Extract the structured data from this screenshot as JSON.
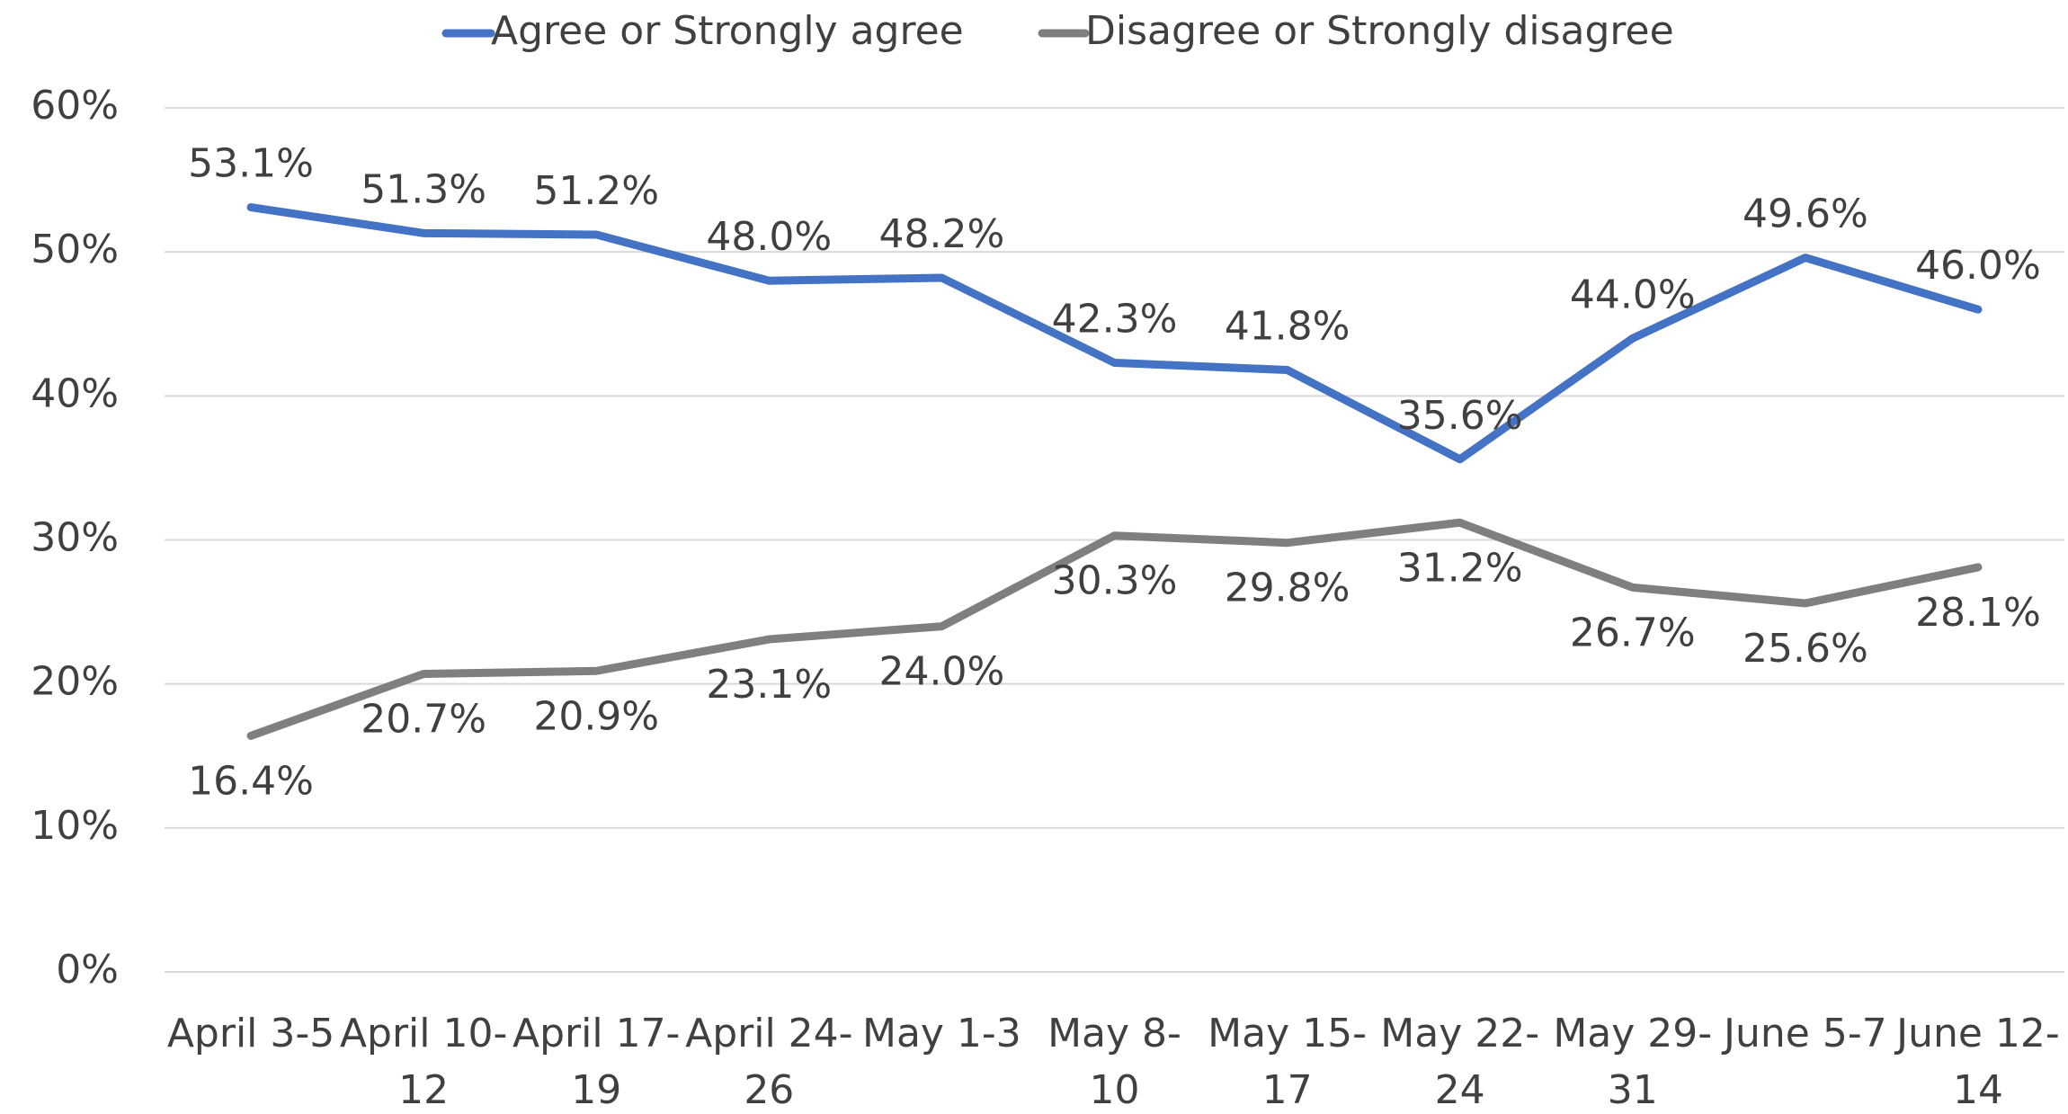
{
  "chart_data": {
    "type": "line",
    "categories": [
      [
        "April 3-5"
      ],
      [
        "April 10-",
        "12"
      ],
      [
        "April 17-",
        "19"
      ],
      [
        "April 24-",
        "26"
      ],
      [
        "May 1-3"
      ],
      [
        "May 8-",
        "10"
      ],
      [
        "May 15-",
        "17"
      ],
      [
        "May 22-",
        "24"
      ],
      [
        "May 29-",
        "31"
      ],
      [
        "June 5-7"
      ],
      [
        "June 12-",
        "14"
      ]
    ],
    "series": [
      {
        "name": "Agree or Strongly agree",
        "color": "#4472c4",
        "values": [
          53.1,
          51.3,
          51.2,
          48.0,
          48.2,
          42.3,
          41.8,
          35.6,
          44.0,
          49.6,
          46.0
        ],
        "value_labels": [
          "53.1%",
          "51.3%",
          "51.2%",
          "48.0%",
          "48.2%",
          "42.3%",
          "41.8%",
          "35.6%",
          "44.0%",
          "49.6%",
          "46.0%"
        ]
      },
      {
        "name": "Disagree or Strongly disagree",
        "color": "#7f7f7f",
        "values": [
          16.4,
          20.7,
          20.9,
          23.1,
          24.0,
          30.3,
          29.8,
          31.2,
          26.7,
          25.6,
          28.1
        ],
        "value_labels": [
          "16.4%",
          "20.7%",
          "20.9%",
          "23.1%",
          "24.0%",
          "30.3%",
          "29.8%",
          "31.2%",
          "26.7%",
          "25.6%",
          "28.1%"
        ]
      }
    ],
    "ylim": [
      0,
      60
    ],
    "yticks": [
      {
        "value": 0,
        "label": "0%"
      },
      {
        "value": 10,
        "label": "10%"
      },
      {
        "value": 20,
        "label": "20%"
      },
      {
        "value": 30,
        "label": "30%"
      },
      {
        "value": 40,
        "label": "40%"
      },
      {
        "value": 50,
        "label": "50%"
      },
      {
        "value": 60,
        "label": "60%"
      }
    ],
    "grid": true,
    "legend": "top"
  }
}
